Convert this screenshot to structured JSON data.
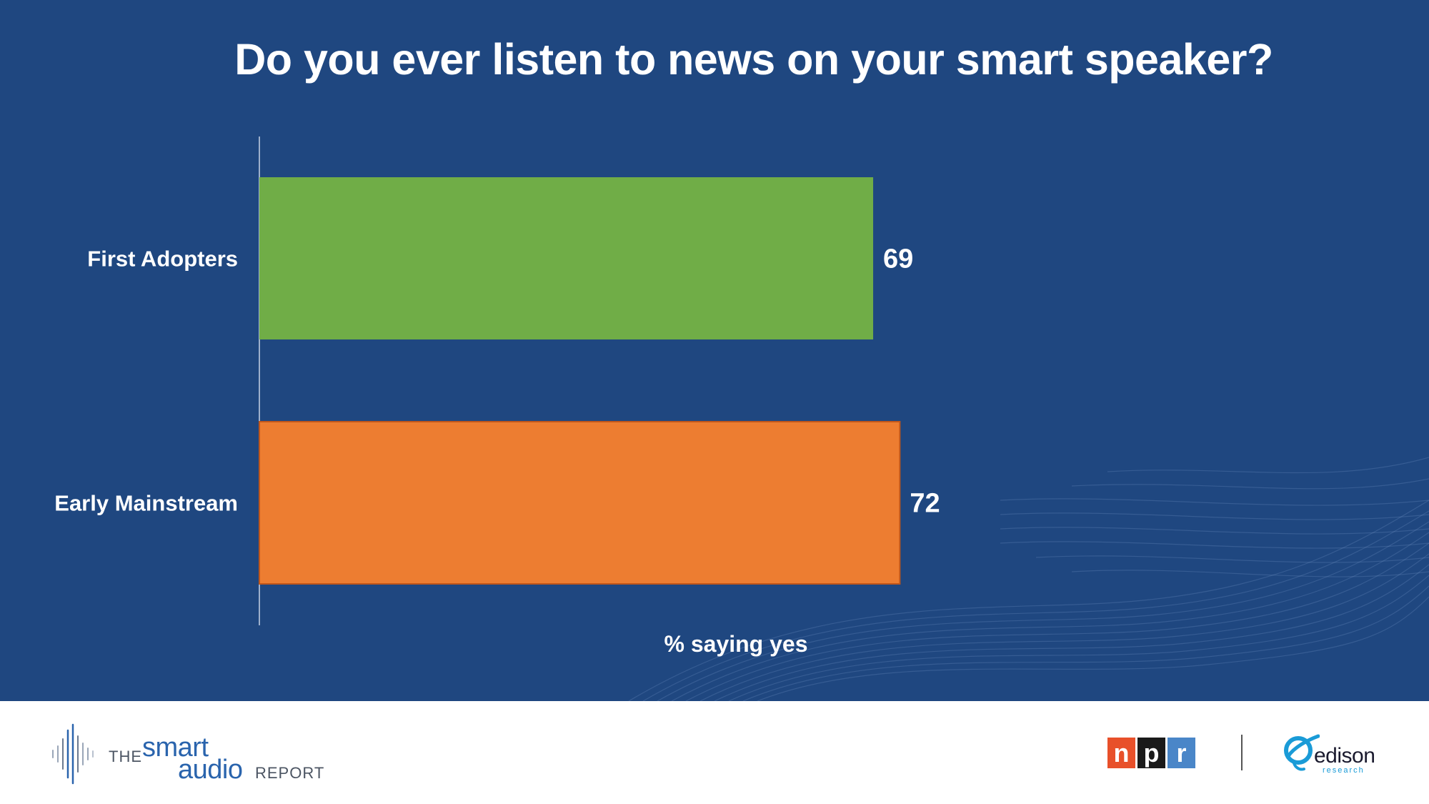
{
  "page": {
    "title": "Do you ever listen to news on your smart speaker?"
  },
  "chart_data": {
    "type": "bar",
    "orientation": "horizontal",
    "title": "Do you ever listen to news on your smart speaker?",
    "xlabel": "% saying yes",
    "ylabel": "",
    "categories": [
      "First Adopters",
      "Early Mainstream"
    ],
    "values": [
      69,
      72
    ],
    "data_labels": [
      "69",
      "72"
    ],
    "colors": [
      "#70ad47",
      "#ed7d31"
    ],
    "xlim": [
      0,
      100
    ],
    "grid": false,
    "legend": "none",
    "background": "#1f4780"
  },
  "footer": {
    "brand": {
      "the": "THE",
      "smart": "smart",
      "audio": "audio",
      "report": "REPORT"
    },
    "npr": {
      "letters": [
        "n",
        "p",
        "r"
      ],
      "colors": [
        "#e8502a",
        "#1a1a1a",
        "#4a86c8"
      ]
    },
    "edison": {
      "name": "edison",
      "sub": "research",
      "accent": "#1a9bd7"
    }
  }
}
